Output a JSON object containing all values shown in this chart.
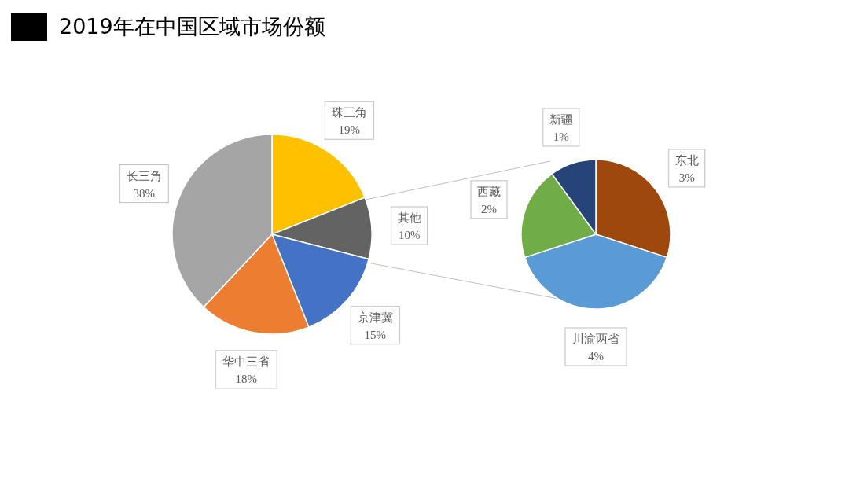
{
  "chart_data": [
    {
      "type": "pie",
      "title": "2019年在中国区域市场份额",
      "categories": [
        "珠三角",
        "其他",
        "京津冀",
        "华中三省",
        "长三角"
      ],
      "values": [
        19,
        10,
        15,
        18,
        38
      ],
      "colors": [
        "#ffc000",
        "#636363",
        "#4472c4",
        "#ed7d31",
        "#a5a5a5"
      ],
      "value_labels": [
        "19%",
        "10%",
        "15%",
        "18%",
        "38%"
      ]
    },
    {
      "type": "pie",
      "categories": [
        "东北",
        "川渝两省",
        "西藏",
        "新疆"
      ],
      "values": [
        3,
        4,
        2,
        1
      ],
      "colors": [
        "#9e480e",
        "#5b9bd5",
        "#70ad47",
        "#264478"
      ],
      "value_labels": [
        "3%",
        "4%",
        "2%",
        "1%"
      ]
    }
  ]
}
